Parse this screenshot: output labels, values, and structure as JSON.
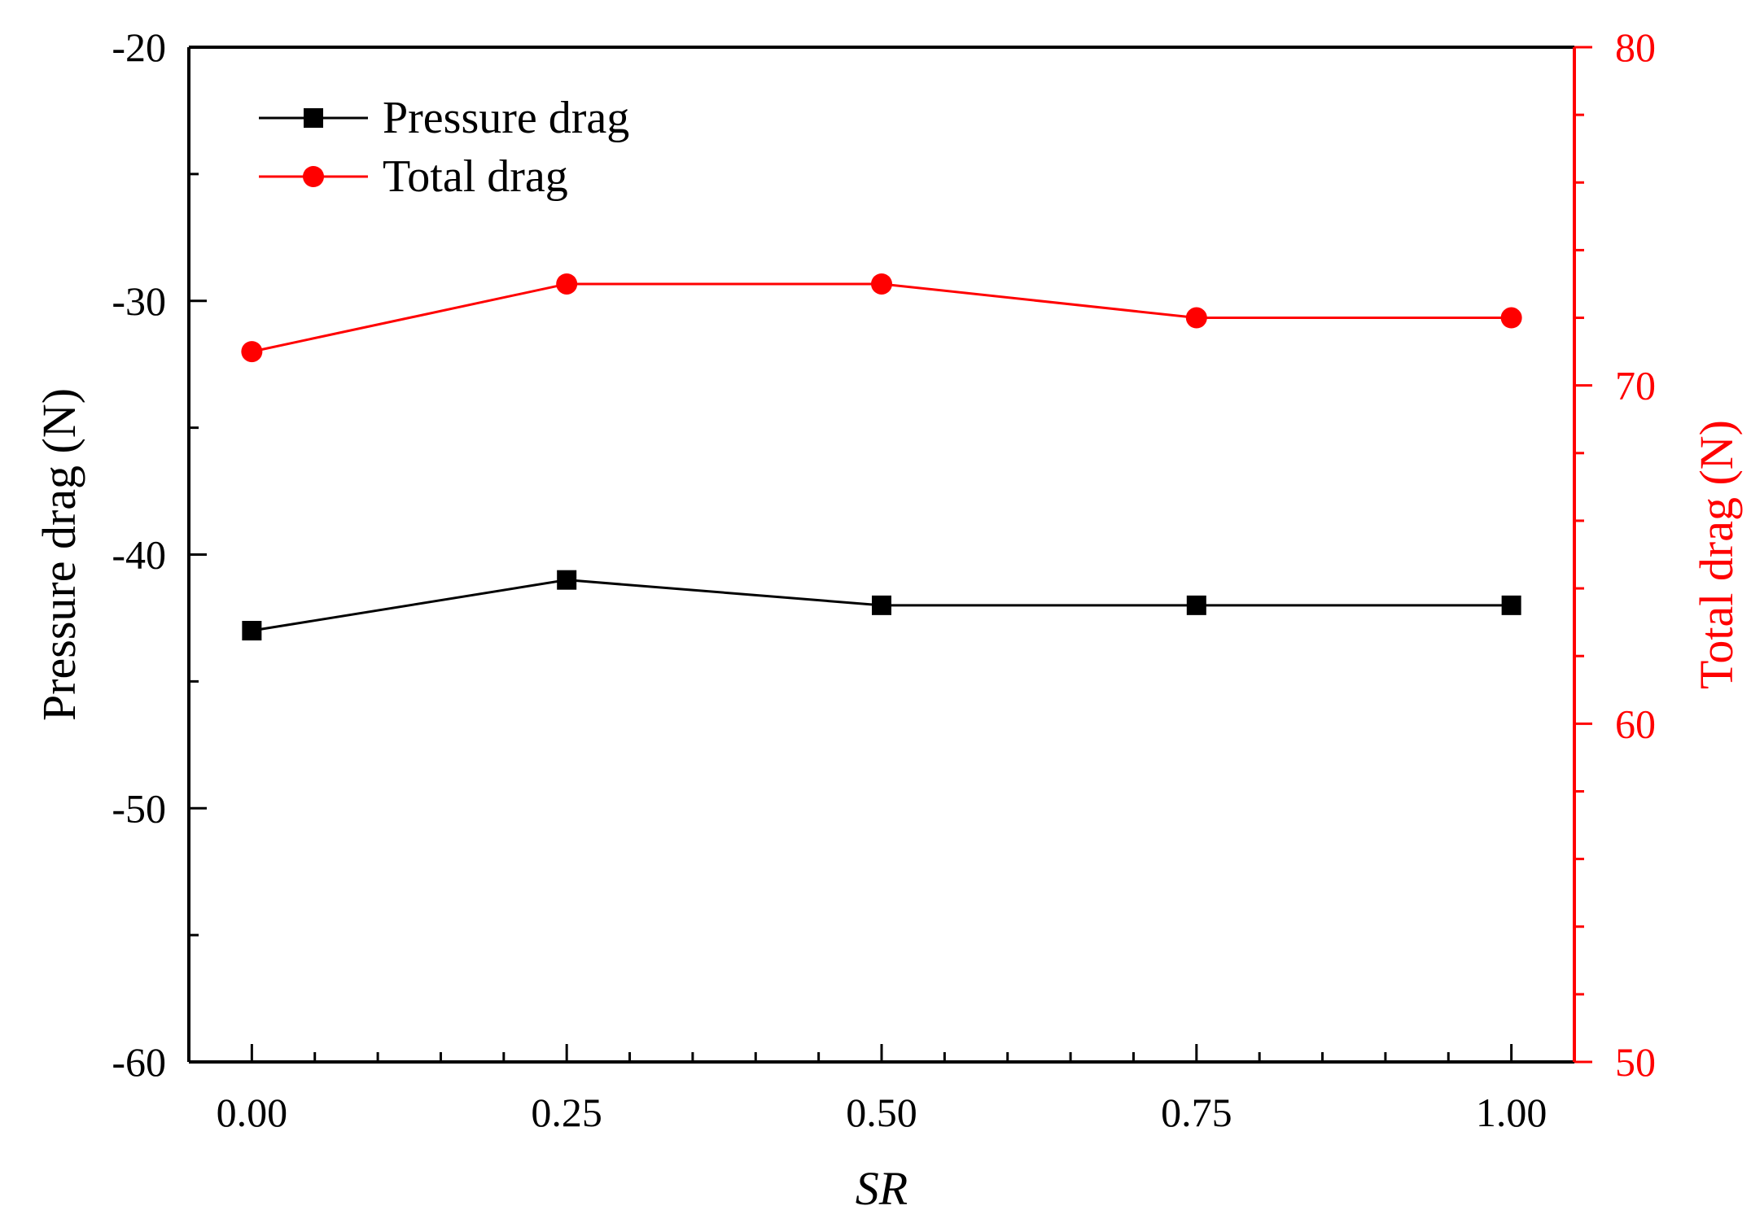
{
  "chart_data": {
    "type": "line",
    "x": [
      0.0,
      0.25,
      0.5,
      0.75,
      1.0
    ],
    "xlabel": "SR",
    "xlim": [
      -0.05,
      1.05
    ],
    "xticks": [
      "0.00",
      "0.25",
      "0.50",
      "0.75",
      "1.00"
    ],
    "ylabel_left": "Pressure drag (N)",
    "ylim_left": [
      -60,
      -20
    ],
    "yticks_left": [
      "-60",
      "-50",
      "-40",
      "-30",
      "-20"
    ],
    "ylabel_right": "Total drag (N)",
    "ylim_right": [
      50,
      80
    ],
    "yticks_right": [
      "50",
      "60",
      "70",
      "80"
    ],
    "series": [
      {
        "name": "Pressure drag",
        "axis": "left",
        "marker": "square",
        "color": "#000000",
        "values": [
          -43.0,
          -41.0,
          -42.0,
          -42.0,
          -42.0
        ]
      },
      {
        "name": "Total drag",
        "axis": "right",
        "marker": "circle",
        "color": "#ff0000",
        "values": [
          71.0,
          73.0,
          73.0,
          72.0,
          72.0
        ]
      }
    ],
    "legend_position": "top-left",
    "grid": false
  }
}
